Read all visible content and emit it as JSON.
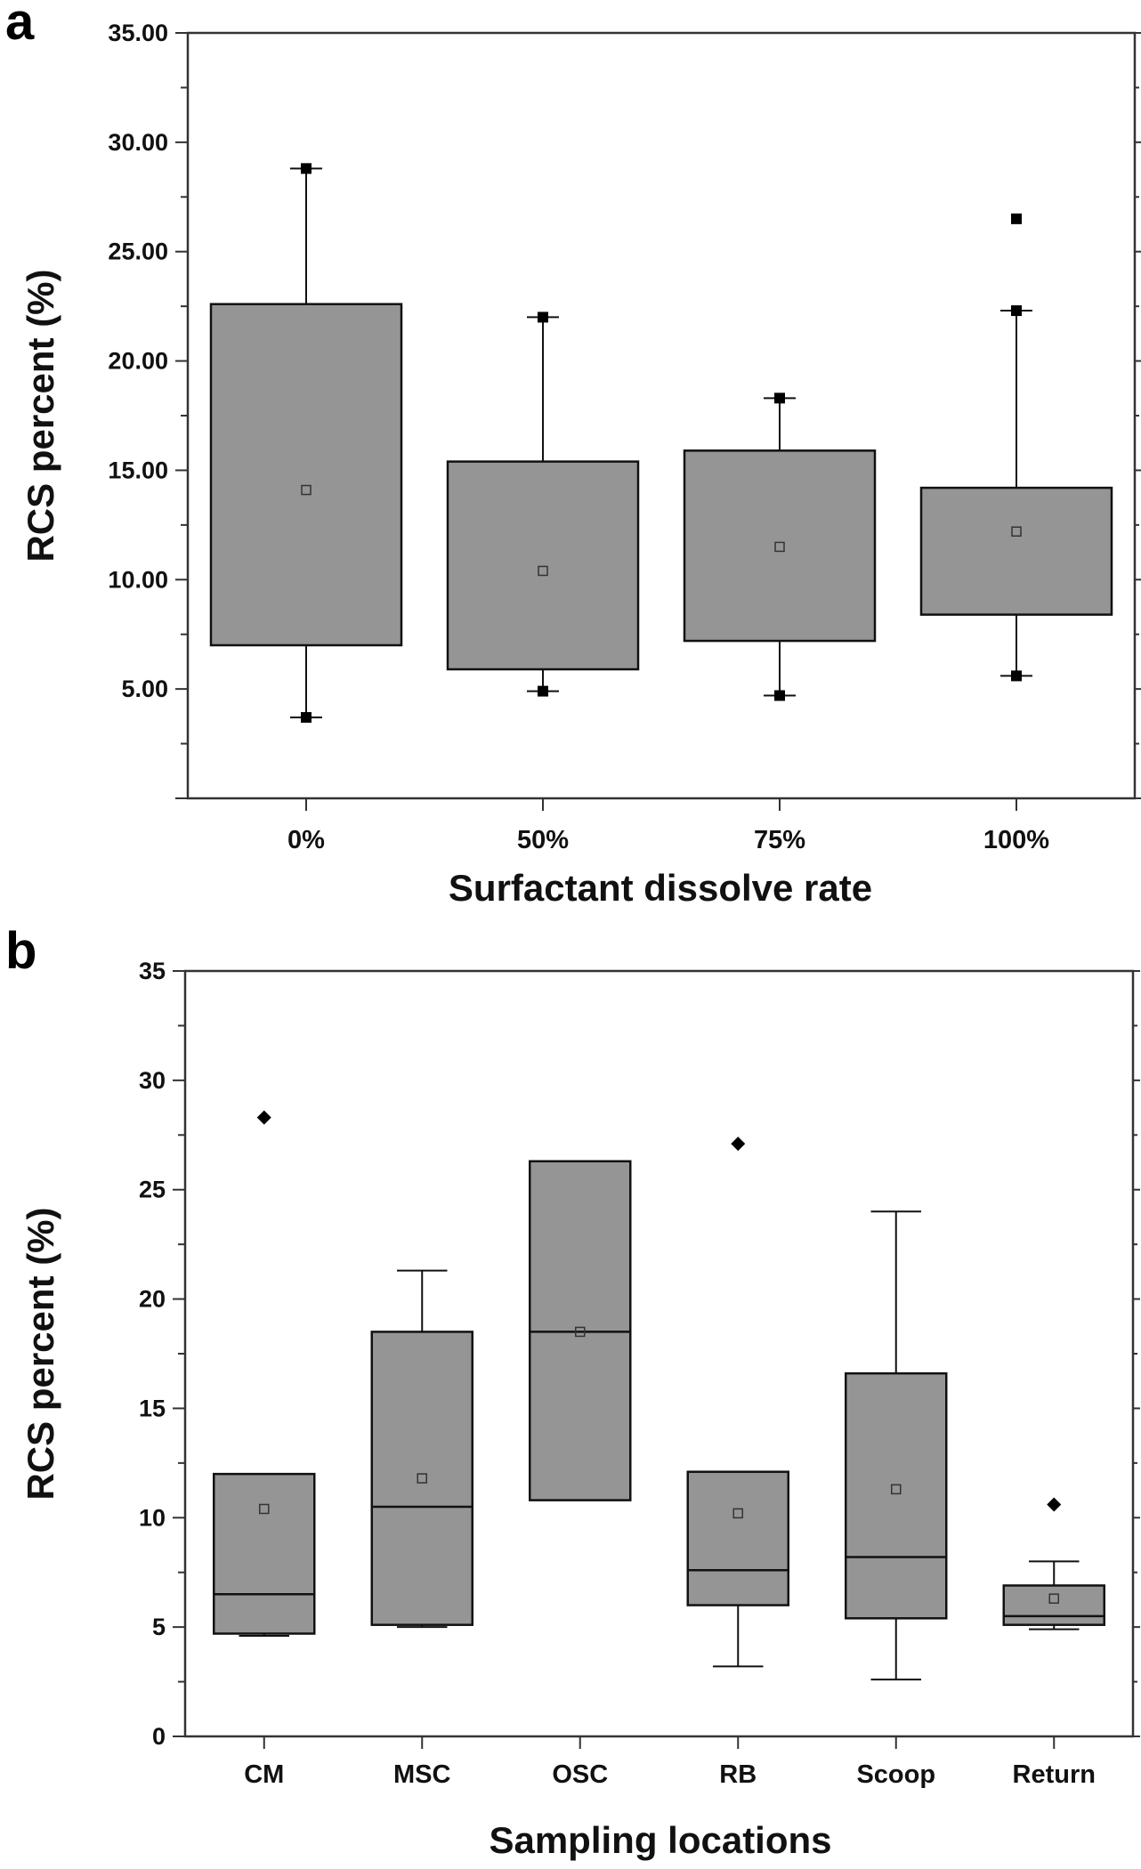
{
  "chart_data": [
    {
      "type": "box",
      "panel_label": "a",
      "title": "",
      "xlabel": "Surfactant dissolve rate",
      "ylabel": "RCS percent (%)",
      "ylim": [
        0,
        35
      ],
      "yticks": [
        5,
        10,
        15,
        20,
        25,
        30,
        35
      ],
      "ytick_labels": [
        "5.00",
        "10.00",
        "15.00",
        "20.00",
        "25.00",
        "30.00",
        "35.00"
      ],
      "grid": false,
      "categories": [
        "0%",
        "50%",
        "75%",
        "100%"
      ],
      "boxes": [
        {
          "category": "0%",
          "whisker_low": 3.7,
          "q1": 7.0,
          "median": null,
          "mean": 14.1,
          "q3": 22.6,
          "whisker_high": 28.8,
          "outliers": []
        },
        {
          "category": "50%",
          "whisker_low": 4.9,
          "q1": 5.9,
          "median": null,
          "mean": 10.4,
          "q3": 15.4,
          "whisker_high": 22.0,
          "outliers": []
        },
        {
          "category": "75%",
          "whisker_low": 4.7,
          "q1": 7.2,
          "median": null,
          "mean": 11.5,
          "q3": 15.9,
          "whisker_high": 18.3,
          "outliers": []
        },
        {
          "category": "100%",
          "whisker_low": 5.6,
          "q1": 8.4,
          "median": null,
          "mean": 12.2,
          "q3": 14.2,
          "whisker_high": 22.3,
          "outliers": [
            26.5
          ]
        }
      ],
      "colors": {
        "box_fill": "#959595",
        "line": "#111111"
      }
    },
    {
      "type": "box",
      "panel_label": "b",
      "title": "",
      "xlabel": "Sampling locations",
      "ylabel": "RCS percent (%)",
      "ylim": [
        0,
        35
      ],
      "yticks": [
        0,
        5,
        10,
        15,
        20,
        25,
        30,
        35
      ],
      "ytick_labels": [
        "0",
        "5",
        "10",
        "15",
        "20",
        "25",
        "30",
        "35"
      ],
      "grid": false,
      "categories": [
        "CM",
        "MSC",
        "OSC",
        "RB",
        "Scoop",
        "Return"
      ],
      "boxes": [
        {
          "category": "CM",
          "whisker_low": 4.6,
          "q1": 4.7,
          "median": 6.5,
          "mean": 10.4,
          "q3": 12.0,
          "whisker_high": 12.0,
          "outliers": [
            28.3
          ]
        },
        {
          "category": "MSC",
          "whisker_low": 5.0,
          "q1": 5.1,
          "median": 10.5,
          "mean": 11.8,
          "q3": 18.5,
          "whisker_high": 21.3,
          "outliers": []
        },
        {
          "category": "OSC",
          "whisker_low": 10.8,
          "q1": 10.8,
          "median": 18.5,
          "mean": 18.5,
          "q3": 26.3,
          "whisker_high": 26.3,
          "outliers": []
        },
        {
          "category": "RB",
          "whisker_low": 3.2,
          "q1": 6.0,
          "median": 7.6,
          "mean": 10.2,
          "q3": 12.1,
          "whisker_high": 12.1,
          "outliers": [
            27.1
          ]
        },
        {
          "category": "Scoop",
          "whisker_low": 2.6,
          "q1": 5.4,
          "median": 8.2,
          "mean": 11.3,
          "q3": 16.6,
          "whisker_high": 24.0,
          "outliers": []
        },
        {
          "category": "Return",
          "whisker_low": 4.9,
          "q1": 5.1,
          "median": 5.5,
          "mean": 6.3,
          "q3": 6.9,
          "whisker_high": 8.0,
          "outliers": [
            10.6
          ]
        }
      ],
      "colors": {
        "box_fill": "#959595",
        "line": "#111111"
      }
    }
  ]
}
